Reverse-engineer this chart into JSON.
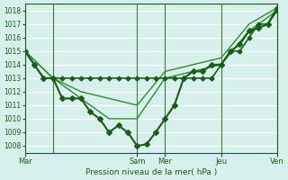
{
  "title": "",
  "xlabel": "Pression niveau de la mer( hPa )",
  "ylabel": "",
  "bg_color": "#d8f0ec",
  "grid_color": "#ffffff",
  "line_color_main": "#1a5c1a",
  "line_color_light": "#2e8b2e",
  "ylim": [
    1007.5,
    1018.5
  ],
  "yticks": [
    1008,
    1009,
    1010,
    1011,
    1012,
    1013,
    1014,
    1015,
    1016,
    1017,
    1018
  ],
  "xtick_labels": [
    "Mar",
    "Sam",
    "Mer",
    "Jeu",
    "Ven"
  ],
  "xtick_positions": [
    0,
    12,
    15,
    21,
    27
  ],
  "vline_positions": [
    3,
    12,
    15,
    21,
    27
  ],
  "series1": {
    "x": [
      0,
      1,
      2,
      3,
      4,
      5,
      6,
      7,
      8,
      9,
      10,
      11,
      12,
      13,
      14,
      15,
      16,
      17,
      18,
      19,
      20,
      21,
      22,
      23,
      24,
      25,
      26,
      27
    ],
    "y": [
      1015,
      1014,
      1013,
      1013,
      1013,
      1013,
      1013,
      1013,
      1013,
      1013,
      1013,
      1013,
      1013,
      1013,
      1013,
      1013,
      1013,
      1013,
      1013,
      1013,
      1013,
      1014,
      1015,
      1015,
      1016,
      1017,
      1017,
      1018
    ],
    "marker": "D",
    "ms": 2.5,
    "lw": 1.2
  },
  "series2": {
    "x": [
      0,
      3,
      6,
      9,
      12,
      15,
      18,
      21,
      24,
      27
    ],
    "y": [
      1015,
      1013,
      1011.5,
      1010,
      1010,
      1013,
      1013.5,
      1014,
      1016.5,
      1018
    ],
    "marker": null,
    "ms": 0,
    "lw": 1.0
  },
  "series3": {
    "x": [
      0,
      3,
      6,
      9,
      12,
      15,
      18,
      21,
      24,
      27
    ],
    "y": [
      1015,
      1013,
      1012,
      1011.5,
      1011,
      1013.5,
      1014,
      1014.5,
      1017,
      1018.2
    ],
    "marker": null,
    "ms": 0,
    "lw": 1.0
  },
  "series_main": {
    "x": [
      0,
      1,
      2,
      3,
      4,
      5,
      6,
      7,
      8,
      9,
      10,
      11,
      12,
      13,
      14,
      15,
      16,
      17,
      18,
      19,
      20,
      21,
      22,
      23,
      24,
      25,
      26,
      27
    ],
    "y": [
      1015,
      1014,
      1013,
      1013,
      1011.5,
      1011.5,
      1011.5,
      1010.5,
      1010,
      1009,
      1009.5,
      1009,
      1008.0,
      1008.1,
      1009,
      1010,
      1011,
      1013,
      1013.5,
      1013.5,
      1014,
      1014,
      1015,
      1015.5,
      1016.5,
      1016.7,
      1017,
      1018.2
    ],
    "marker": "D",
    "ms": 3,
    "lw": 1.5
  }
}
